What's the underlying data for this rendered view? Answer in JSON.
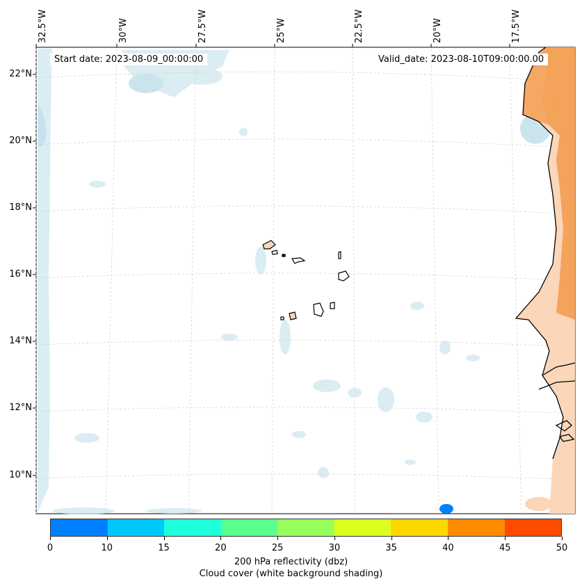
{
  "map": {
    "start_date": "Start date: 2023-08-09_00:00:00",
    "valid_date": "Valid_date: 2023-08-10T09:00:00.00",
    "longitude_labels": [
      "32.5°W",
      "30°W",
      "27.5°W",
      "25°W",
      "22.5°W",
      "20°W",
      "17.5°W"
    ],
    "latitude_labels": [
      "22°N",
      "20°N",
      "18°N",
      "16°N",
      "14°N",
      "12°N",
      "10°N"
    ],
    "colors": {
      "cloud": "#bfe0ea",
      "land_high": "#f4a35b",
      "land_low": "#fbd6b8",
      "coastline": "#000000",
      "grid": "#cccccc",
      "reflectivity_spot": "#0080ff"
    }
  },
  "colorbar": {
    "ticks": [
      "0",
      "10",
      "15",
      "20",
      "25",
      "30",
      "35",
      "40",
      "45",
      "50"
    ],
    "colors": [
      "#0080ff",
      "#00c8ff",
      "#1effdc",
      "#5aff8c",
      "#96ff5a",
      "#dcff1e",
      "#ffd700",
      "#ff8c00",
      "#ff4b00"
    ],
    "label_line1": "200 hPa reflectivity (dbz)",
    "label_line2": "Cloud cover (white background shading)"
  }
}
